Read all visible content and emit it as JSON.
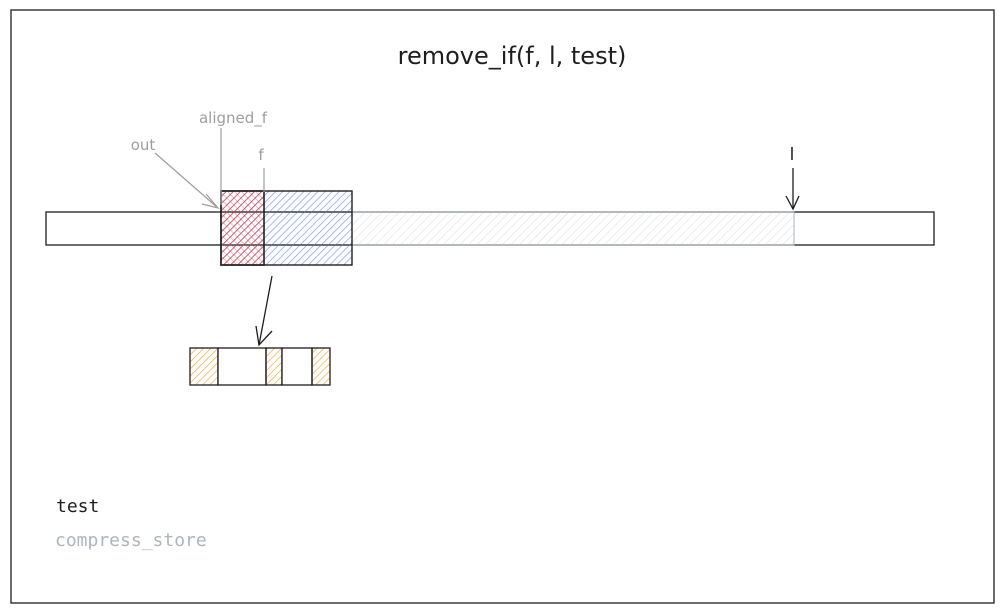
{
  "title": "remove_if(f, l, test)",
  "labels": {
    "out": "out",
    "aligned_f": "aligned_f",
    "f": "f",
    "l": "l"
  },
  "legend": {
    "test": "test",
    "compress_store": "compress_store"
  },
  "colors": {
    "border": "#1e1e1e",
    "red_block": "#e03131",
    "blue_block": "#4c6ef5",
    "gray_hatch": "#ced4da",
    "yellow_block": "#f08c00",
    "faded_text": "#adb5bd",
    "label_text": "#9e9e9e"
  },
  "mask_pattern": [
    true,
    false,
    true,
    false,
    true
  ]
}
